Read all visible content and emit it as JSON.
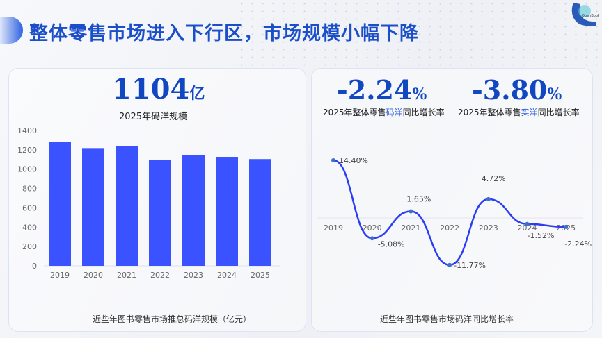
{
  "header": {
    "title": "整体零售市场进入下行区，市场规模小幅下降",
    "logo_text": "OpenBook"
  },
  "left_panel": {
    "kpi_value": "1104",
    "kpi_unit": "亿",
    "kpi_label": "2025年码洋规模",
    "caption": "近些年图书零售市场推总码洋规模（亿元）"
  },
  "right_panel": {
    "kpi1": {
      "value": "-2.24",
      "unit": "%",
      "label_pre": "2025年整体零售",
      "label_hl": "码洋",
      "label_post": "同比增长率"
    },
    "kpi2": {
      "value": "-3.80",
      "unit": "%",
      "label_pre": "2025年整体零售",
      "label_hl": "实洋",
      "label_post": "同比增长率"
    },
    "caption": "近些年图书零售市场码洋同比增长率"
  },
  "chart_data": [
    {
      "type": "bar",
      "categories": [
        "2019",
        "2020",
        "2021",
        "2022",
        "2023",
        "2024",
        "2025"
      ],
      "values": [
        1285,
        1218,
        1240,
        1093,
        1144,
        1127,
        1104
      ],
      "ylim": [
        0,
        1400
      ],
      "yticks": [
        "0",
        "200",
        "400",
        "600",
        "800",
        "1000",
        "1200",
        "1400"
      ],
      "color": "#3a52ff",
      "grid": false
    },
    {
      "type": "line",
      "categories": [
        "2019",
        "2020",
        "2021",
        "2022",
        "2023",
        "2024",
        "2025"
      ],
      "values": [
        14.4,
        -5.08,
        1.65,
        -11.77,
        4.72,
        -1.52,
        -2.24
      ],
      "labels": [
        "14.40%",
        "-5.08%",
        "1.65%",
        "-11.77%",
        "4.72%",
        "-1.52%",
        "-2.24%"
      ],
      "smooth": true,
      "color": "#2b3cf5",
      "marker_color": "#3d6fc9"
    }
  ]
}
